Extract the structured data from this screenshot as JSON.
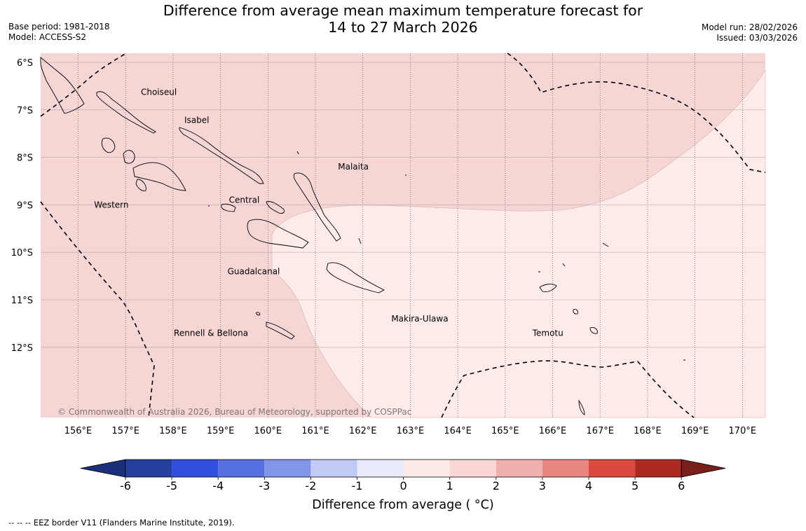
{
  "title": {
    "line1": "Difference from average mean maximum temperature forecast for",
    "line2": "14 to 27 March 2026"
  },
  "meta_left": {
    "base_period": "Base period: 1981-2018",
    "model": "Model: ACCESS-S2"
  },
  "meta_right": {
    "model_run": "Model run: 28/02/2026",
    "issued": "Issued: 03/03/2026"
  },
  "latitude_labels": [
    "6°S",
    "7°S",
    "8°S",
    "9°S",
    "10°S",
    "11°S",
    "12°S"
  ],
  "longitude_labels": [
    "156°E",
    "157°E",
    "158°E",
    "159°E",
    "160°E",
    "161°E",
    "162°E",
    "163°E",
    "164°E",
    "165°E",
    "166°E",
    "167°E",
    "168°E",
    "169°E",
    "170°E"
  ],
  "region_labels": [
    {
      "name": "Choiseul",
      "lon": 157.7,
      "lat": -6.63
    },
    {
      "name": "Isabel",
      "lon": 158.5,
      "lat": -7.22
    },
    {
      "name": "Malaita",
      "lon": 161.8,
      "lat": -8.2
    },
    {
      "name": "Central",
      "lon": 159.5,
      "lat": -8.9
    },
    {
      "name": "Western",
      "lon": 156.7,
      "lat": -9.0
    },
    {
      "name": "Guadalcanal",
      "lon": 159.7,
      "lat": -10.4
    },
    {
      "name": "Makira-Ulawa",
      "lon": 163.2,
      "lat": -11.4
    },
    {
      "name": "Temotu",
      "lon": 165.9,
      "lat": -11.7
    },
    {
      "name": "Rennell & Bellona",
      "lon": 158.8,
      "lat": -11.7
    }
  ],
  "copyright": "© Commonwealth of Australia 2026, Bureau of Meteorology, supported by COSPPac",
  "colorbar": {
    "ticks": [
      "-6",
      "-5",
      "-4",
      "-3",
      "-2",
      "-1",
      "0",
      "1",
      "2",
      "3",
      "4",
      "5",
      "6"
    ],
    "colors": [
      "#243f9e",
      "#2f4fdc",
      "#5670e1",
      "#8196eb",
      "#c1c9f5",
      "#e8ebfb",
      "#fdeae8",
      "#f7d6d4",
      "#efb0ad",
      "#e8877f",
      "#db4a3e",
      "#ad2a23"
    ],
    "under_color": "#1b2f7a",
    "over_color": "#7a1f1a",
    "label": "Difference from average ( °C)"
  },
  "fill_colors": {
    "category_1_2": "#f5d6d4",
    "category_0_1": "#fcebe9"
  },
  "footnote": "-- -- -- EEZ border V11 (Flanders Marine Institute, 2019)."
}
